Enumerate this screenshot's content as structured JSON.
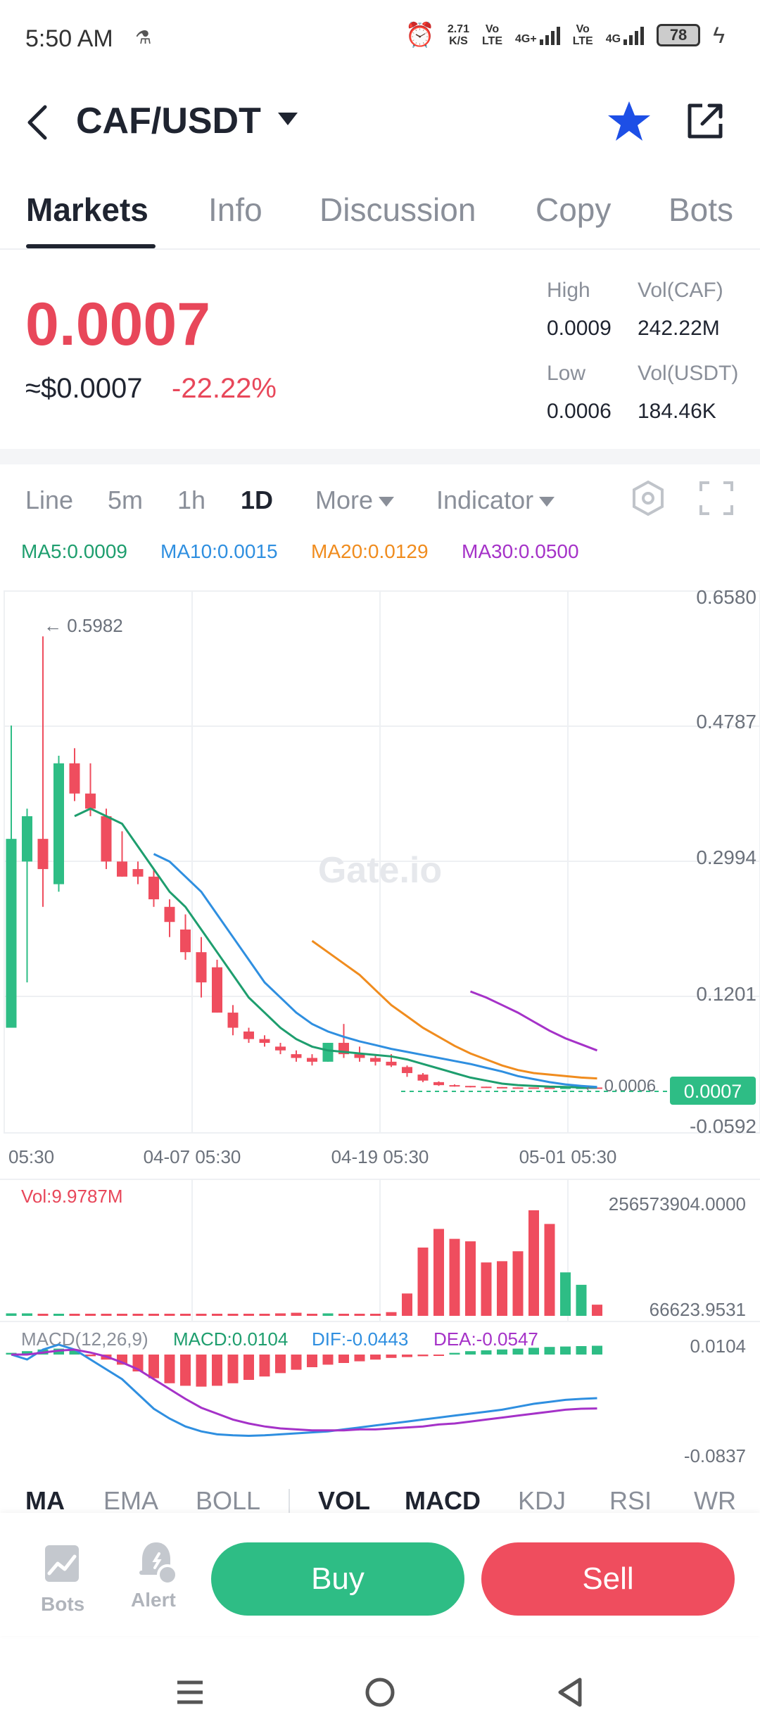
{
  "status": {
    "time": "5:50 AM",
    "net_speed_top": "2.71",
    "net_speed_bottom": "K/S",
    "vo_lte_1_top": "Vo",
    "vo_lte_1_bottom": "LTE",
    "sim1": "4G+",
    "vo_lte_2_top": "Vo",
    "vo_lte_2_bottom": "LTE",
    "sim2": "4G",
    "battery": "78"
  },
  "header": {
    "pair": "CAF/USDT"
  },
  "tabs": [
    "Markets",
    "Info",
    "Discussion",
    "Copy",
    "Bots"
  ],
  "price": {
    "last": "0.0007",
    "usd": "≈$0.0007",
    "change": "-22.22%",
    "high_label": "High",
    "high": "0.0009",
    "low_label": "Low",
    "low": "0.0006",
    "vol_base_label": "Vol(CAF)",
    "vol_base": "242.22M",
    "vol_quote_label": "Vol(USDT)",
    "vol_quote": "184.46K"
  },
  "intervals": [
    "Line",
    "5m",
    "1h",
    "1D",
    "More",
    "Indicator"
  ],
  "ma_legend": {
    "ma5": "MA5:0.0009",
    "ma10": "MA10:0.0015",
    "ma20": "MA20:0.0129",
    "ma30": "MA30:0.0500"
  },
  "colors": {
    "up": "#2ebd85",
    "down": "#ef4d5e",
    "ma5": "#1e9e6e",
    "ma10": "#2f8fe0",
    "ma20": "#f08c1e",
    "ma30": "#a532c8",
    "dif": "#2f8fe0",
    "dea": "#a532c8"
  },
  "chart": {
    "watermark": "Gate.io",
    "y_ticks": [
      "0.6580",
      "0.4787",
      "0.2994",
      "0.1201",
      "-0.0592"
    ],
    "x_ticks": [
      "05:30",
      "04-07 05:30",
      "04-19 05:30",
      "05-01 05:30"
    ],
    "max_marker": "← 0.5982",
    "min_marker": "← 0.0006",
    "last_price_tag": "0.0007",
    "vol_label": "Vol:9.9787M",
    "vol_max": "256573904.0000",
    "vol_min": "66623.9531",
    "macd_label": "MACD(12,26,9)",
    "macd_value": "MACD:0.0104",
    "dif_value": "DIF:-0.0443",
    "dea_value": "DEA:-0.0547",
    "macd_max": "0.0104",
    "macd_min": "-0.0837"
  },
  "chart_data": {
    "type": "candlestick",
    "y_range": [
      -0.0592,
      0.658
    ],
    "candles": [
      {
        "o": 0.08,
        "h": 0.48,
        "l": 0.08,
        "c": 0.33
      },
      {
        "o": 0.3,
        "h": 0.37,
        "l": 0.14,
        "c": 0.36
      },
      {
        "o": 0.33,
        "h": 0.598,
        "l": 0.24,
        "c": 0.29
      },
      {
        "o": 0.27,
        "h": 0.44,
        "l": 0.26,
        "c": 0.43
      },
      {
        "o": 0.43,
        "h": 0.45,
        "l": 0.38,
        "c": 0.39
      },
      {
        "o": 0.39,
        "h": 0.43,
        "l": 0.36,
        "c": 0.37
      },
      {
        "o": 0.36,
        "h": 0.37,
        "l": 0.29,
        "c": 0.3
      },
      {
        "o": 0.3,
        "h": 0.34,
        "l": 0.28,
        "c": 0.28
      },
      {
        "o": 0.29,
        "h": 0.3,
        "l": 0.27,
        "c": 0.28
      },
      {
        "o": 0.28,
        "h": 0.29,
        "l": 0.24,
        "c": 0.25
      },
      {
        "o": 0.24,
        "h": 0.25,
        "l": 0.2,
        "c": 0.22
      },
      {
        "o": 0.21,
        "h": 0.23,
        "l": 0.17,
        "c": 0.18
      },
      {
        "o": 0.18,
        "h": 0.2,
        "l": 0.12,
        "c": 0.14
      },
      {
        "o": 0.16,
        "h": 0.17,
        "l": 0.1,
        "c": 0.1
      },
      {
        "o": 0.1,
        "h": 0.11,
        "l": 0.07,
        "c": 0.08
      },
      {
        "o": 0.075,
        "h": 0.08,
        "l": 0.06,
        "c": 0.065
      },
      {
        "o": 0.065,
        "h": 0.07,
        "l": 0.055,
        "c": 0.06
      },
      {
        "o": 0.055,
        "h": 0.06,
        "l": 0.045,
        "c": 0.05
      },
      {
        "o": 0.045,
        "h": 0.05,
        "l": 0.035,
        "c": 0.04
      },
      {
        "o": 0.04,
        "h": 0.045,
        "l": 0.03,
        "c": 0.035
      },
      {
        "o": 0.035,
        "h": 0.06,
        "l": 0.035,
        "c": 0.06
      },
      {
        "o": 0.06,
        "h": 0.085,
        "l": 0.04,
        "c": 0.045
      },
      {
        "o": 0.045,
        "h": 0.055,
        "l": 0.035,
        "c": 0.04
      },
      {
        "o": 0.04,
        "h": 0.045,
        "l": 0.03,
        "c": 0.035
      },
      {
        "o": 0.035,
        "h": 0.045,
        "l": 0.028,
        "c": 0.03
      },
      {
        "o": 0.028,
        "h": 0.03,
        "l": 0.015,
        "c": 0.02
      },
      {
        "o": 0.018,
        "h": 0.02,
        "l": 0.008,
        "c": 0.01
      },
      {
        "o": 0.008,
        "h": 0.009,
        "l": 0.003,
        "c": 0.004
      },
      {
        "o": 0.004,
        "h": 0.005,
        "l": 0.002,
        "c": 0.003
      },
      {
        "o": 0.003,
        "h": 0.003,
        "l": 0.001,
        "c": 0.002
      },
      {
        "o": 0.002,
        "h": 0.002,
        "l": 0.001,
        "c": 0.0015
      },
      {
        "o": 0.0015,
        "h": 0.0015,
        "l": 0.0008,
        "c": 0.001
      },
      {
        "o": 0.001,
        "h": 0.001,
        "l": 0.0007,
        "c": 0.0009
      },
      {
        "o": 0.0009,
        "h": 0.0009,
        "l": 0.0006,
        "c": 0.0008
      },
      {
        "o": 0.0008,
        "h": 0.0008,
        "l": 0.0006,
        "c": 0.0007
      },
      {
        "o": 0.0007,
        "h": 0.0008,
        "l": 0.0006,
        "c": 0.00075
      },
      {
        "o": 0.0007,
        "h": 0.0008,
        "l": 0.0006,
        "c": 0.00072
      },
      {
        "o": 0.0009,
        "h": 0.0009,
        "l": 0.0006,
        "c": 0.0007
      }
    ],
    "ma5": [
      null,
      null,
      null,
      null,
      0.36,
      0.37,
      0.36,
      0.35,
      0.32,
      0.29,
      0.26,
      0.24,
      0.21,
      0.18,
      0.15,
      0.12,
      0.1,
      0.08,
      0.065,
      0.055,
      0.05,
      0.048,
      0.046,
      0.044,
      0.042,
      0.038,
      0.032,
      0.026,
      0.02,
      0.014,
      0.01,
      0.006,
      0.004,
      0.003,
      0.002,
      0.0015,
      0.001,
      0.0009
    ],
    "ma10": [
      null,
      null,
      null,
      null,
      null,
      null,
      null,
      null,
      null,
      0.31,
      0.3,
      0.28,
      0.26,
      0.23,
      0.2,
      0.17,
      0.14,
      0.12,
      0.1,
      0.085,
      0.075,
      0.068,
      0.062,
      0.057,
      0.052,
      0.048,
      0.044,
      0.04,
      0.036,
      0.032,
      0.027,
      0.022,
      0.016,
      0.012,
      0.008,
      0.005,
      0.003,
      0.0015
    ],
    "ma20": [
      null,
      null,
      null,
      null,
      null,
      null,
      null,
      null,
      null,
      null,
      null,
      null,
      null,
      null,
      null,
      null,
      null,
      null,
      null,
      0.195,
      0.18,
      0.165,
      0.15,
      0.13,
      0.11,
      0.095,
      0.08,
      0.068,
      0.056,
      0.046,
      0.038,
      0.03,
      0.024,
      0.02,
      0.018,
      0.016,
      0.014,
      0.0129
    ],
    "ma30": [
      null,
      null,
      null,
      null,
      null,
      null,
      null,
      null,
      null,
      null,
      null,
      null,
      null,
      null,
      null,
      null,
      null,
      null,
      null,
      null,
      null,
      null,
      null,
      null,
      null,
      null,
      null,
      null,
      null,
      0.128,
      0.12,
      0.11,
      0.1,
      0.088,
      0.076,
      0.066,
      0.058,
      0.05
    ],
    "volume": [
      2,
      2,
      1,
      1,
      0.5,
      0.5,
      0.3,
      0.3,
      0.2,
      0.2,
      0.2,
      0.2,
      0.2,
      0.3,
      0.4,
      0.5,
      1.2,
      2.0,
      2.5,
      1.5,
      2.0,
      1.0,
      0.8,
      1.5,
      3.0,
      18,
      55,
      70,
      62,
      60,
      43,
      44,
      52,
      85,
      74,
      35,
      25,
      9
    ],
    "macd_hist": [
      0.002,
      0.004,
      0.006,
      0.007,
      0.005,
      -0.002,
      -0.006,
      -0.012,
      -0.02,
      -0.028,
      -0.034,
      -0.037,
      -0.038,
      -0.037,
      -0.034,
      -0.03,
      -0.026,
      -0.022,
      -0.018,
      -0.015,
      -0.012,
      -0.01,
      -0.008,
      -0.006,
      -0.004,
      -0.003,
      -0.002,
      -0.001,
      0.002,
      0.004,
      0.005,
      0.006,
      0.007,
      0.008,
      0.009,
      0.0095,
      0.01,
      0.0104
    ],
    "dif": [
      0.0,
      -0.005,
      0.005,
      0.01,
      0.005,
      -0.005,
      -0.015,
      -0.025,
      -0.04,
      -0.055,
      -0.065,
      -0.073,
      -0.078,
      -0.081,
      -0.082,
      -0.0825,
      -0.082,
      -0.081,
      -0.08,
      -0.079,
      -0.078,
      -0.076,
      -0.074,
      -0.072,
      -0.07,
      -0.068,
      -0.066,
      -0.064,
      -0.062,
      -0.06,
      -0.058,
      -0.056,
      -0.053,
      -0.05,
      -0.048,
      -0.046,
      -0.045,
      -0.0443
    ],
    "dea": [
      0.0,
      0.0,
      0.002,
      0.004,
      0.005,
      0.002,
      -0.002,
      -0.008,
      -0.015,
      -0.025,
      -0.035,
      -0.045,
      -0.054,
      -0.06,
      -0.066,
      -0.07,
      -0.073,
      -0.075,
      -0.076,
      -0.077,
      -0.077,
      -0.077,
      -0.076,
      -0.076,
      -0.075,
      -0.074,
      -0.073,
      -0.071,
      -0.07,
      -0.068,
      -0.066,
      -0.064,
      -0.062,
      -0.06,
      -0.058,
      -0.056,
      -0.055,
      -0.0547
    ]
  },
  "indicators": [
    "MA",
    "EMA",
    "BOLL",
    "VOL",
    "MACD",
    "KDJ",
    "RSI",
    "WR"
  ],
  "bottom": {
    "bots": "Bots",
    "alert": "Alert",
    "buy": "Buy",
    "sell": "Sell"
  }
}
